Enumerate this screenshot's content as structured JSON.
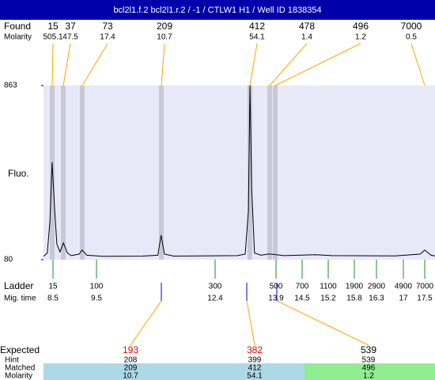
{
  "header": {
    "title": "bcl2l1.f.2 bcl2l1.r.2 / -1 / CTLW1 H1 / Well ID 1838354"
  },
  "found": {
    "label": "Found",
    "sizes": [
      15,
      37,
      73,
      209,
      412,
      478,
      496,
      7000
    ],
    "molarity_label": "Molarity",
    "molarity": [
      505.1,
      47.5,
      17.4,
      10.7,
      54.1,
      1.4,
      1.2,
      0.5
    ]
  },
  "plot": {
    "y_label": "Fluo.",
    "ylim": [
      80,
      863
    ],
    "yticks": [
      80,
      863
    ],
    "color": "#000000",
    "trace": {
      "x": [
        8.28,
        8.37,
        8.43,
        8.48,
        8.54,
        8.59,
        8.66,
        8.74,
        8.83,
        8.92,
        9.1,
        9.17,
        9.28,
        9.65,
        10.62,
        11.0,
        11.08,
        11.16,
        11.39,
        12.95,
        13.14,
        13.22,
        13.26,
        13.3,
        13.37,
        13.53,
        13.73,
        13.82,
        14.08,
        14.87,
        15.29,
        16.79,
        17.39,
        17.5,
        17.65,
        17.74
      ],
      "y": [
        95,
        110,
        250,
        518,
        300,
        150,
        115,
        155,
        110,
        98,
        105,
        123,
        100,
        95,
        96,
        100,
        190,
        105,
        96,
        98,
        105,
        300,
        863,
        400,
        110,
        100,
        106,
        104,
        98,
        102,
        98,
        97,
        105,
        123,
        100,
        97
      ]
    }
  },
  "ladder": {
    "label": "Ladder",
    "sizes": [
      15,
      100,
      300,
      500,
      700,
      1100,
      1900,
      2900,
      4900,
      7000
    ],
    "mig_label": "Mig. time",
    "mig_times": [
      8.5,
      9.5,
      12.4,
      13.9,
      14.5,
      15.2,
      15.8,
      16.3,
      17,
      17.5
    ]
  },
  "results": {
    "expected_label": "Expected",
    "expected": [
      193,
      382,
      539
    ],
    "expected_colors": [
      "#ff0000",
      "#ff0000",
      "#000000"
    ],
    "hint_label": "Hint",
    "hint": [
      208,
      399,
      539
    ],
    "matched_label": "Matched",
    "matched": [
      209,
      412,
      496
    ],
    "molarity_label": "Molarity",
    "molarity": [
      10.7,
      54.1,
      1.2
    ]
  }
}
